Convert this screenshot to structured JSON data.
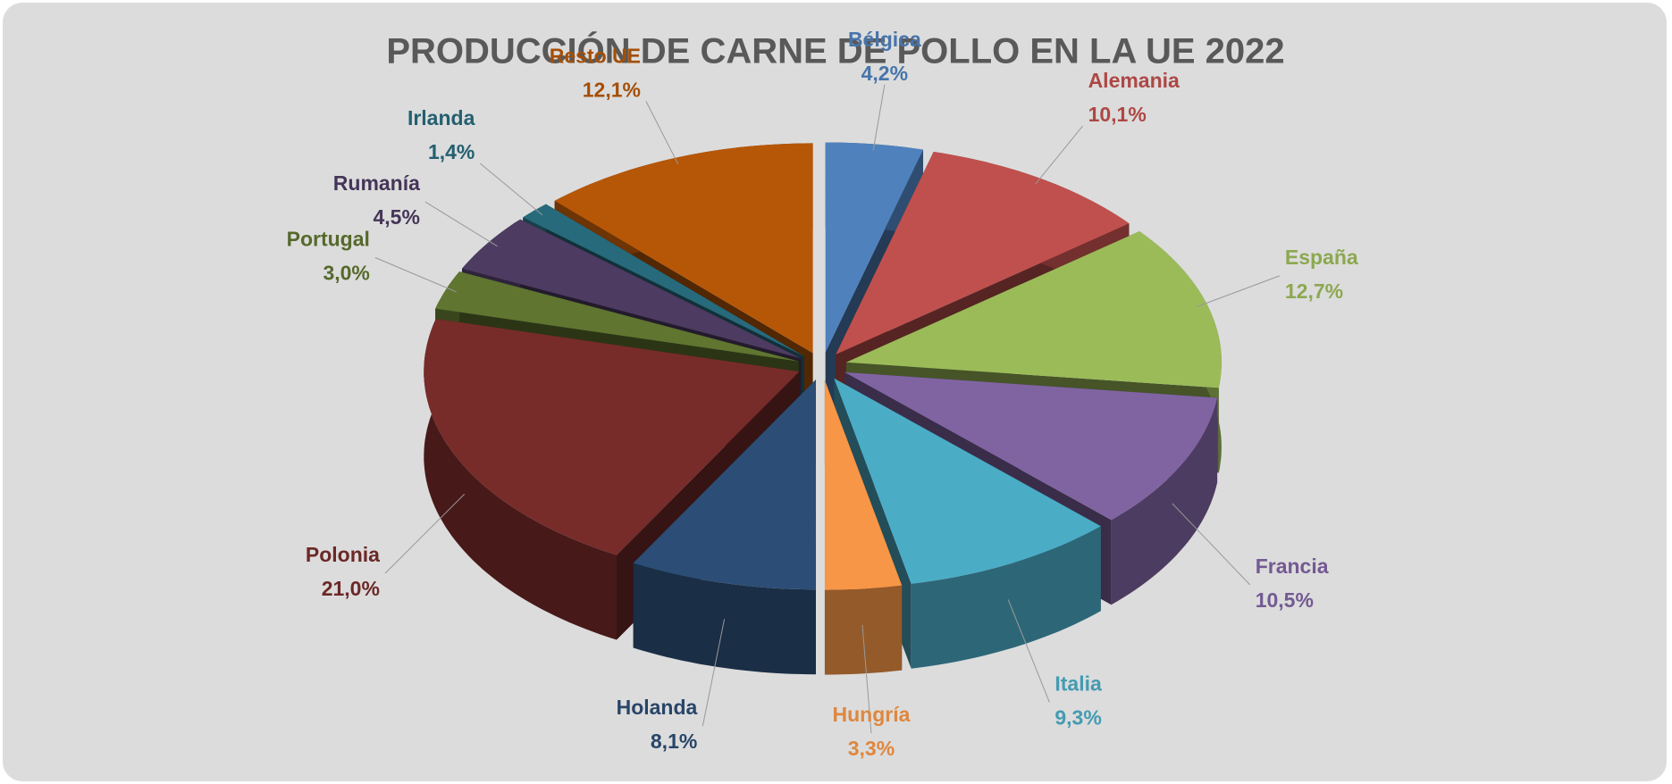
{
  "chart_data": {
    "type": "pie",
    "title": "PRODUCCIÓN DE CARNE DE POLLO EN LA UE 2022",
    "categories": [
      "Bélgica",
      "Alemania",
      "España",
      "Francia",
      "Italia",
      "Hungría",
      "Holanda",
      "Polonia",
      "Portugal",
      "Rumanía",
      "Irlanda",
      "Resto UE"
    ],
    "values": [
      4.2,
      10.1,
      12.7,
      10.5,
      9.3,
      3.3,
      8.1,
      21.0,
      3.0,
      4.5,
      1.4,
      12.1
    ],
    "value_labels": [
      "4,2%",
      "10,1%",
      "12,7%",
      "10,5%",
      "9,3%",
      "3,3%",
      "8,1%",
      "21,0%",
      "3,0%",
      "4,5%",
      "1,4%",
      "12,1%"
    ],
    "colors": [
      "#4f81bd",
      "#c0504d",
      "#9bbb59",
      "#8064a2",
      "#4bacc6",
      "#f79646",
      "#2c4d75",
      "#772c2a",
      "#5f7530",
      "#4d3b62",
      "#276a7c",
      "#b65708"
    ]
  }
}
